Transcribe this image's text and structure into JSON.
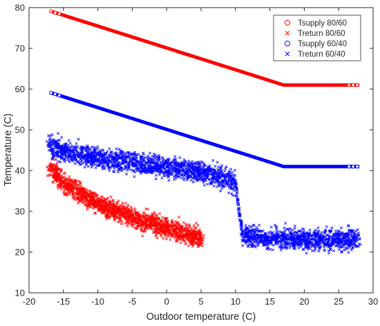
{
  "chart_data": {
    "type": "scatter",
    "title": "",
    "xlabel": "Outdoor temperature (C)",
    "ylabel": "Temperature (C)",
    "xlim": [
      -20,
      30
    ],
    "ylim": [
      10,
      80
    ],
    "xticks": [
      -20,
      -15,
      -10,
      -5,
      0,
      5,
      10,
      15,
      20,
      25,
      30
    ],
    "yticks": [
      10,
      20,
      30,
      40,
      50,
      60,
      70,
      80
    ],
    "grid": false,
    "legend_position": "top-right",
    "series": [
      {
        "name": "Tsupply 80/60",
        "marker": "o",
        "color": "#ff0000",
        "x": [
          -17,
          17,
          28
        ],
        "y": [
          79.2,
          61,
          61
        ]
      },
      {
        "name": "Treturn 80/60",
        "marker": "x",
        "color": "#ff0000",
        "x": [
          -17,
          -15,
          -13,
          -11,
          -9,
          -7,
          -5,
          -3,
          -1,
          1,
          3,
          5
        ],
        "y": [
          41,
          37,
          35,
          33,
          31,
          30,
          28.5,
          27.5,
          26.5,
          25.5,
          24.5,
          23.5
        ]
      },
      {
        "name": "Tsupply 60/40",
        "marker": "o",
        "color": "#0000ff",
        "x": [
          -17,
          17,
          28
        ],
        "y": [
          59.2,
          41,
          41
        ]
      },
      {
        "name": "Treturn 60/40",
        "marker": "x",
        "color": "#0000ff",
        "x": [
          -17,
          -13,
          -9,
          -5,
          -1,
          3,
          7,
          10,
          11,
          15,
          20,
          25,
          28
        ],
        "y": [
          46,
          44,
          43,
          42,
          41,
          40,
          39,
          37,
          24,
          23.5,
          23,
          23,
          23.5
        ]
      }
    ]
  }
}
